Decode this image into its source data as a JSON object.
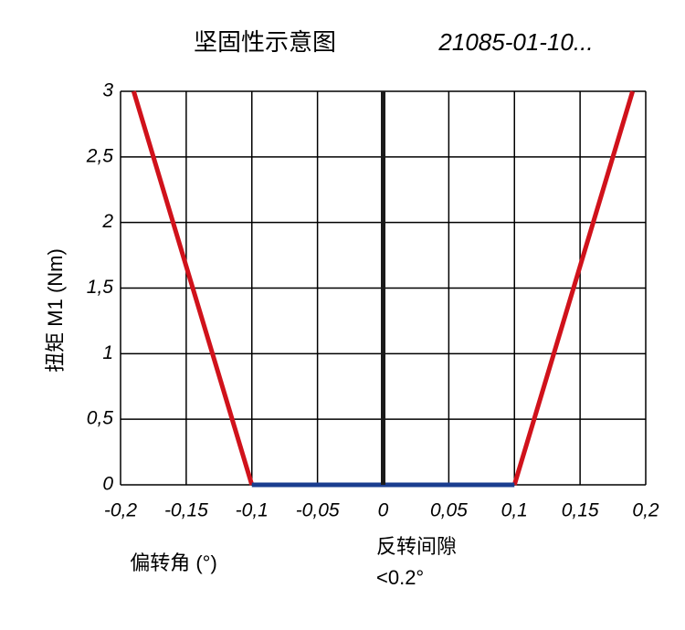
{
  "chart_data": {
    "type": "line",
    "title": "坚固性示意图",
    "subtitle": "21085-01-10...",
    "y_label": "扭矩 M1 (Nm)",
    "x_label": "偏转角 (°)",
    "annotation": [
      "反转间隙",
      "<0.2°"
    ],
    "xlim": [
      -0.2,
      0.2
    ],
    "ylim": [
      0,
      3
    ],
    "xticks": [
      {
        "value": -0.2,
        "label": "-0,2"
      },
      {
        "value": -0.15,
        "label": "-0,15"
      },
      {
        "value": -0.1,
        "label": "-0,1"
      },
      {
        "value": -0.05,
        "label": "-0,05"
      },
      0,
      {
        "value": 0.05,
        "label": "0,05"
      },
      {
        "value": 0.1,
        "label": "0,1"
      },
      {
        "value": 0.15,
        "label": "0,15"
      },
      {
        "value": 0.2,
        "label": "0,2"
      }
    ],
    "yticks": [
      0,
      {
        "value": 0.5,
        "label": "0,5"
      },
      1,
      {
        "value": 1.5,
        "label": "1,5"
      },
      2,
      {
        "value": 2.5,
        "label": "2,5"
      },
      3
    ],
    "grid": true,
    "series": [
      {
        "color": "#d0121b",
        "x": [
          -0.19,
          -0.1
        ],
        "values": [
          3,
          0
        ]
      },
      {
        "color": "#d0121b",
        "x": [
          0.1,
          0.19
        ],
        "values": [
          0,
          3
        ]
      },
      {
        "color": "#1a3d8f",
        "x": [
          -0.1,
          0.1
        ],
        "values": [
          0,
          0
        ]
      },
      {
        "color": "#1a1a1a",
        "x": [
          0,
          0
        ],
        "values": [
          0,
          3
        ]
      }
    ]
  }
}
